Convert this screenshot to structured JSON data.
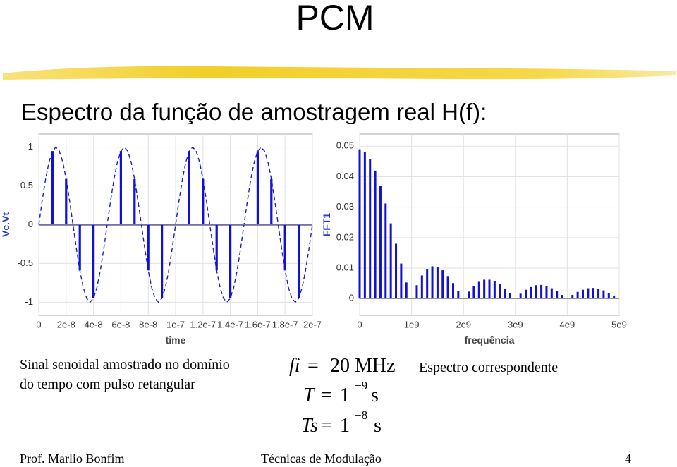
{
  "title": "PCM",
  "subtitle": "Espectro da função de amostragem real H(f):",
  "captions": {
    "left": [
      "Sinal senoidal amostrado no domínio",
      "do tempo com pulso retangular"
    ],
    "right": "Espectro correspondente"
  },
  "formulas": [
    {
      "lhs": "fi",
      "rel": "=",
      "rhs": "20 MHz"
    },
    {
      "lhs": "T",
      "rel": "=",
      "rhs": "1",
      "exp": "−9",
      "unit": "s"
    },
    {
      "lhs": "Ts",
      "rel": "=",
      "rhs": "1",
      "exp": "−8",
      "unit": "s"
    }
  ],
  "footer": {
    "author": "Prof. Marlio Bonfim",
    "course": "Técnicas de Modulação",
    "page": "4"
  },
  "chart_data": [
    {
      "type": "line",
      "x_label": "time",
      "y_label": "Vc.Vt",
      "grid": true,
      "xlim": [
        0,
        2e-07
      ],
      "ylim": [
        -1.17,
        1.17
      ],
      "xticks": [
        0,
        2e-08,
        4e-08,
        6e-08,
        8e-08,
        1e-07,
        1.2e-07,
        1.4e-07,
        1.6e-07,
        1.8e-07,
        2e-07
      ],
      "yticks": [
        1,
        0.5,
        0,
        -0.5,
        -1
      ],
      "series": [
        {
          "style": "dashed",
          "color": "#1a1ad0",
          "x": [
            0,
            2.5e-09,
            5e-09,
            7.5e-09,
            1e-08,
            1.25e-08,
            1.5e-08,
            1.75e-08,
            2e-08,
            2.25e-08,
            2.5e-08,
            2.75e-08,
            3e-08,
            3.25e-08,
            3.5e-08,
            3.75e-08,
            4e-08,
            4.25e-08,
            4.5e-08,
            4.75e-08,
            5e-08,
            5.25e-08,
            5.5e-08,
            5.75e-08,
            6e-08,
            6.25e-08,
            6.5e-08,
            6.75e-08,
            7e-08,
            7.25e-08,
            7.5e-08,
            7.75e-08,
            8e-08,
            8.25e-08,
            8.5e-08,
            8.75e-08,
            9e-08,
            9.25e-08,
            9.5e-08,
            9.75e-08,
            1e-07,
            1.025e-07,
            1.05e-07,
            1.075e-07,
            1.1e-07,
            1.125e-07,
            1.15e-07,
            1.175e-07,
            1.2e-07,
            1.225e-07,
            1.25e-07,
            1.275e-07,
            1.3e-07,
            1.325e-07,
            1.35e-07,
            1.375e-07,
            1.4e-07,
            1.425e-07,
            1.45e-07,
            1.475e-07,
            1.5e-07,
            1.525e-07,
            1.55e-07,
            1.575e-07,
            1.6e-07,
            1.625e-07,
            1.65e-07,
            1.675e-07,
            1.7e-07,
            1.725e-07,
            1.75e-07,
            1.775e-07,
            1.8e-07,
            1.825e-07,
            1.85e-07,
            1.875e-07,
            1.9e-07,
            1.925e-07,
            1.95e-07,
            1.975e-07,
            2e-07
          ],
          "values": [
            0,
            0.31,
            0.59,
            0.81,
            0.95,
            1,
            0.95,
            0.81,
            0.59,
            0.31,
            0,
            -0.31,
            -0.59,
            -0.81,
            -0.95,
            -1,
            -0.95,
            -0.81,
            -0.59,
            -0.31,
            0,
            0.31,
            0.59,
            0.81,
            0.95,
            1,
            0.95,
            0.81,
            0.59,
            0.31,
            0,
            -0.31,
            -0.59,
            -0.81,
            -0.95,
            -1,
            -0.95,
            -0.81,
            -0.59,
            -0.31,
            0,
            0.31,
            0.59,
            0.81,
            0.95,
            1,
            0.95,
            0.81,
            0.59,
            0.31,
            0,
            -0.31,
            -0.59,
            -0.81,
            -0.95,
            -1,
            -0.95,
            -0.81,
            -0.59,
            -0.31,
            0,
            0.31,
            0.59,
            0.81,
            0.95,
            1,
            0.95,
            0.81,
            0.59,
            0.31,
            0,
            -0.31,
            -0.59,
            -0.81,
            -0.95,
            -1,
            -0.95,
            -0.81,
            -0.59,
            -0.31,
            0
          ]
        },
        {
          "style": "pulse",
          "color": "#1010d8",
          "x": [
            0,
            1e-08,
            2e-08,
            3e-08,
            4e-08,
            5e-08,
            6e-08,
            7e-08,
            8e-08,
            9e-08,
            1e-07,
            1.1e-07,
            1.2e-07,
            1.3e-07,
            1.4e-07,
            1.5e-07,
            1.6e-07,
            1.7e-07,
            1.8e-07,
            1.9e-07,
            2e-07
          ],
          "values": [
            0,
            0.95,
            0.59,
            -0.59,
            -0.95,
            0,
            0.95,
            0.59,
            -0.59,
            -0.95,
            0,
            0.95,
            0.59,
            -0.59,
            -0.95,
            0,
            0.95,
            0.59,
            -0.59,
            -0.95,
            0
          ]
        }
      ]
    },
    {
      "type": "bar",
      "x_label": "frequência",
      "y_label": "FFT1",
      "grid": true,
      "color": "#1010d8",
      "xlim": [
        0,
        5000000000.0
      ],
      "ylim": [
        -0.0055,
        0.054
      ],
      "xticks": [
        0,
        {
          "value": 1000000000.0,
          "label": "1e9"
        },
        {
          "value": 2000000000.0,
          "label": "2e9"
        },
        {
          "value": 3000000000.0,
          "label": "3e9"
        },
        {
          "value": 4000000000.0,
          "label": "4e9"
        },
        {
          "value": 5000000000.0,
          "label": "5e9"
        }
      ],
      "yticks": [
        0,
        0.01,
        0.02,
        0.03,
        0.04,
        0.05
      ],
      "x": [
        0,
        100000000.0,
        200000000.0,
        300000000.0,
        400000000.0,
        500000000.0,
        600000000.0,
        700000000.0,
        800000000.0,
        900000000.0,
        1000000000.0,
        1100000000.0,
        1200000000.0,
        1300000000.0,
        1400000000.0,
        1500000000.0,
        1600000000.0,
        1700000000.0,
        1800000000.0,
        1900000000.0,
        2000000000.0,
        2100000000.0,
        2200000000.0,
        2300000000.0,
        2400000000.0,
        2500000000.0,
        2600000000.0,
        2700000000.0,
        2800000000.0,
        2900000000.0,
        3000000000.0,
        3100000000.0,
        3200000000.0,
        3300000000.0,
        3400000000.0,
        3500000000.0,
        3600000000.0,
        3700000000.0,
        3800000000.0,
        3900000000.0,
        4000000000.0,
        4100000000.0,
        4200000000.0,
        4300000000.0,
        4400000000.0,
        4500000000.0,
        4600000000.0,
        4700000000.0,
        4800000000.0,
        4900000000.0,
        5000000000.0
      ],
      "values": [
        0.049,
        0.0482,
        0.0458,
        0.042,
        0.0371,
        0.0312,
        0.0247,
        0.018,
        0.0115,
        0.0053,
        0,
        0.0044,
        0.0076,
        0.0097,
        0.0106,
        0.0104,
        0.0093,
        0.0074,
        0.0051,
        0.0025,
        0,
        0.0023,
        0.0042,
        0.0055,
        0.0062,
        0.0062,
        0.0057,
        0.0047,
        0.0033,
        0.0017,
        0,
        0.0016,
        0.0029,
        0.0038,
        0.0044,
        0.0045,
        0.0041,
        0.0034,
        0.0024,
        0.0012,
        0,
        0.0012,
        0.0022,
        0.0029,
        0.0034,
        0.0035,
        0.0032,
        0.0027,
        0.0019,
        0.001,
        0
      ]
    }
  ]
}
